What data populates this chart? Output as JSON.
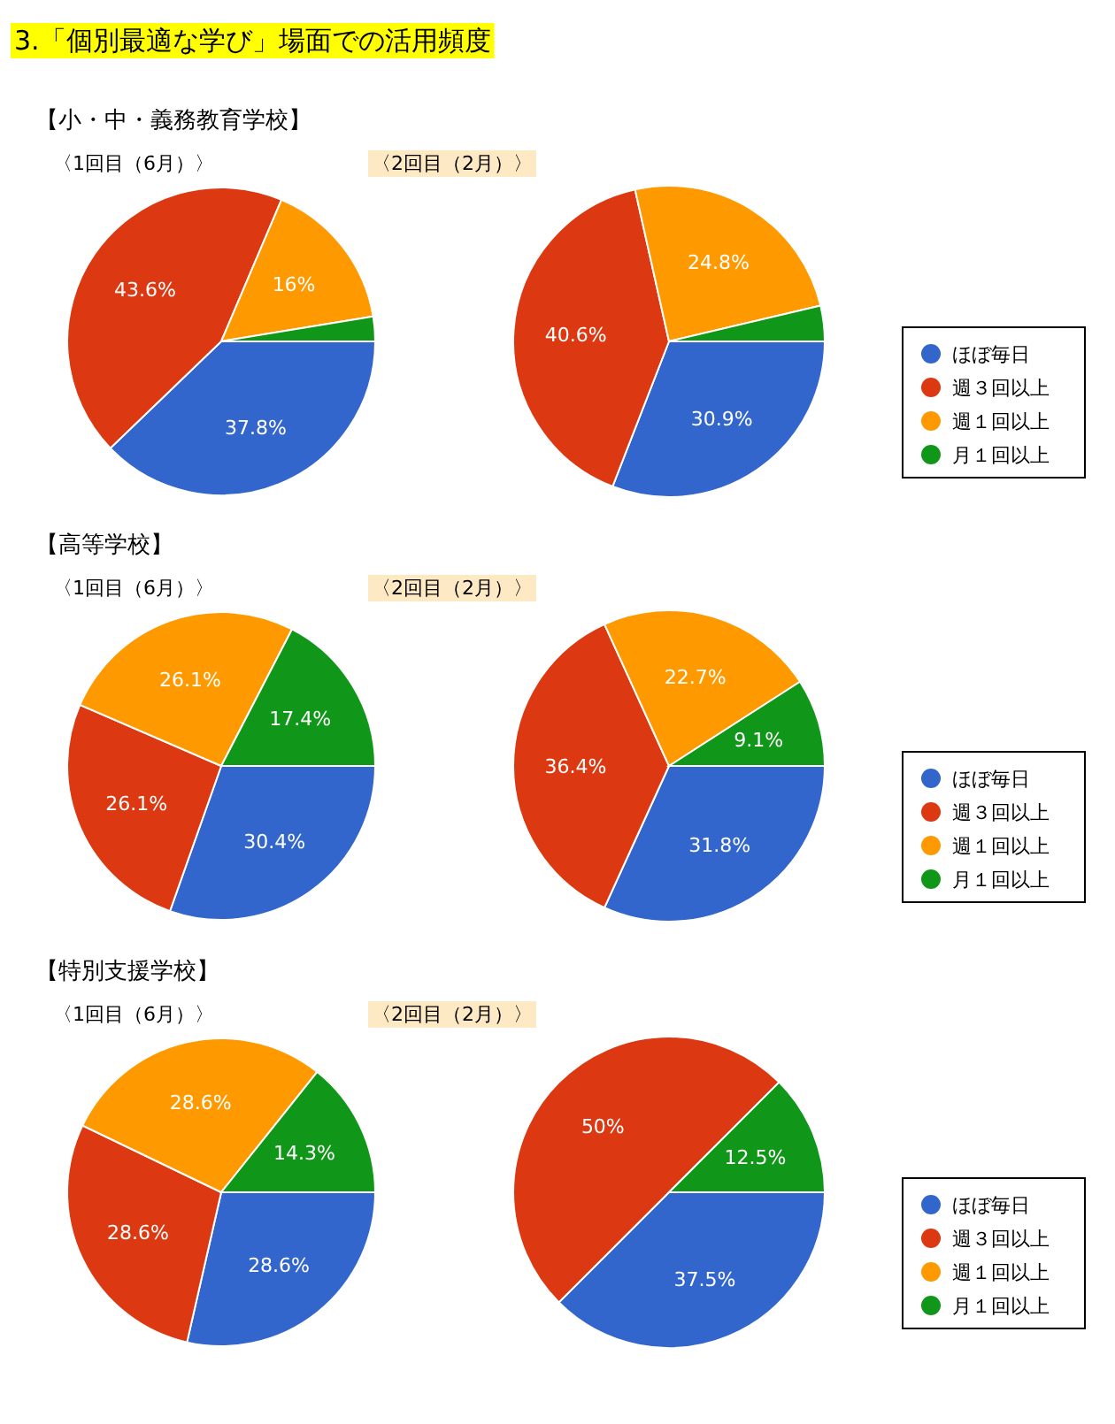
{
  "chart_data": [
    {
      "type": "pie",
      "annotations": [
        "3.「個別最適な学び」場面での活用頻度"
      ],
      "title": "【小・中・義務教育学校】",
      "categories": [
        "ほぼ毎日",
        "週３回以上",
        "週１回以上",
        "月１回以上"
      ],
      "colors": [
        "#3366cc",
        "#dc3912",
        "#ff9900",
        "#109618"
      ],
      "legend": "right",
      "series": [
        {
          "name": "〈1回目（6月）〉",
          "values": [
            37.8,
            43.6,
            16,
            2.6
          ],
          "value_labels": [
            "37.8%",
            "43.6%",
            "16%",
            null
          ]
        },
        {
          "name": "〈2回目（2月）〉",
          "values": [
            30.9,
            40.6,
            24.8,
            3.7
          ],
          "value_labels": [
            "30.9%",
            "40.6%",
            "24.8%",
            null
          ]
        }
      ]
    },
    {
      "type": "pie",
      "title": "【高等学校】",
      "categories": [
        "ほぼ毎日",
        "週３回以上",
        "週１回以上",
        "月１回以上"
      ],
      "colors": [
        "#3366cc",
        "#dc3912",
        "#ff9900",
        "#109618"
      ],
      "legend": "right",
      "series": [
        {
          "name": "〈1回目（6月）〉",
          "values": [
            30.4,
            26.1,
            26.1,
            17.4
          ],
          "value_labels": [
            "30.4%",
            "26.1%",
            "26.1%",
            "17.4%"
          ]
        },
        {
          "name": "〈2回目（2月）〉",
          "values": [
            31.8,
            36.4,
            22.7,
            9.1
          ],
          "value_labels": [
            "31.8%",
            "36.4%",
            "22.7%",
            "9.1%"
          ]
        }
      ]
    },
    {
      "type": "pie",
      "title": "【特別支援学校】",
      "categories": [
        "ほぼ毎日",
        "週３回以上",
        "週１回以上",
        "月１回以上"
      ],
      "colors": [
        "#3366cc",
        "#dc3912",
        "#ff9900",
        "#109618"
      ],
      "legend": "right",
      "series": [
        {
          "name": "〈1回目（6月）〉",
          "values": [
            28.6,
            28.6,
            28.6,
            14.3
          ],
          "value_labels": [
            "28.6%",
            "28.6%",
            "28.6%",
            "14.3%"
          ]
        },
        {
          "name": "〈2回目（2月）〉",
          "values": [
            37.5,
            50,
            0,
            12.5
          ],
          "value_labels": [
            "37.5%",
            "50%",
            null,
            "12.5%"
          ]
        }
      ]
    }
  ]
}
